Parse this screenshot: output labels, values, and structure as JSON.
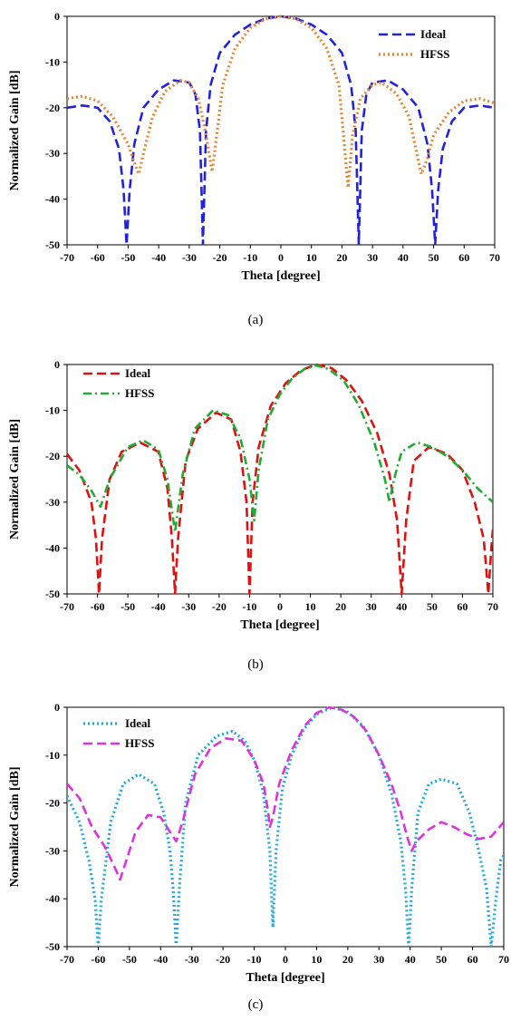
{
  "chart_data": [
    {
      "type": "line",
      "panel": "a",
      "caption": "(a)",
      "xlabel": "Theta [degree]",
      "ylabel": "Normalized Gain [dB]",
      "xlim": [
        -70,
        70
      ],
      "ylim": [
        -50,
        0
      ],
      "xticks": [
        "-70",
        "-60",
        "-50",
        "-40",
        "-30",
        "-20",
        "-10",
        "0",
        "10",
        "20",
        "30",
        "40",
        "50",
        "60",
        "70"
      ],
      "yticks": [
        "0",
        "-10",
        "-20",
        "-30",
        "-40",
        "-50"
      ],
      "legend_position": "top-right",
      "series": [
        {
          "name": "Ideal",
          "color": "#2222dd",
          "style": "dashed",
          "points": [
            [
              -70,
              -20
            ],
            [
              -65,
              -19.5
            ],
            [
              -60,
              -20
            ],
            [
              -56,
              -23
            ],
            [
              -53,
              -29
            ],
            [
              -51.5,
              -38
            ],
            [
              -50.5,
              -50
            ],
            [
              -49.5,
              -38
            ],
            [
              -48,
              -28
            ],
            [
              -45,
              -20
            ],
            [
              -40,
              -16
            ],
            [
              -35,
              -14
            ],
            [
              -30,
              -14.5
            ],
            [
              -28,
              -17
            ],
            [
              -26.5,
              -25
            ],
            [
              -25.5,
              -50
            ],
            [
              -24.5,
              -25
            ],
            [
              -23,
              -15
            ],
            [
              -20,
              -8
            ],
            [
              -15,
              -4
            ],
            [
              -10,
              -1.8
            ],
            [
              -5,
              -0.5
            ],
            [
              0,
              0
            ],
            [
              5,
              -0.5
            ],
            [
              10,
              -1.8
            ],
            [
              15,
              -4
            ],
            [
              20,
              -8
            ],
            [
              23,
              -15
            ],
            [
              24.5,
              -25
            ],
            [
              25.5,
              -50
            ],
            [
              26.5,
              -25
            ],
            [
              28,
              -17
            ],
            [
              30,
              -14.5
            ],
            [
              35,
              -14
            ],
            [
              40,
              -16
            ],
            [
              45,
              -20
            ],
            [
              48,
              -28
            ],
            [
              49.5,
              -38
            ],
            [
              50.5,
              -50
            ],
            [
              51.5,
              -38
            ],
            [
              53,
              -29
            ],
            [
              56,
              -23
            ],
            [
              60,
              -20
            ],
            [
              65,
              -19.5
            ],
            [
              70,
              -20
            ]
          ]
        },
        {
          "name": "HFSS",
          "color": "#e6862e",
          "style": "dotted",
          "points": [
            [
              -70,
              -18
            ],
            [
              -65,
              -17.5
            ],
            [
              -60,
              -18.5
            ],
            [
              -55,
              -22
            ],
            [
              -50,
              -28
            ],
            [
              -48,
              -32
            ],
            [
              -46.5,
              -34.5
            ],
            [
              -45,
              -30
            ],
            [
              -42,
              -22
            ],
            [
              -38,
              -16.5
            ],
            [
              -33,
              -14
            ],
            [
              -30,
              -14.5
            ],
            [
              -27,
              -18
            ],
            [
              -24.5,
              -26
            ],
            [
              -22.5,
              -34
            ],
            [
              -21,
              -26
            ],
            [
              -19,
              -15
            ],
            [
              -15,
              -7
            ],
            [
              -10,
              -2.5
            ],
            [
              -5,
              -0.6
            ],
            [
              0,
              0
            ],
            [
              5,
              -0.6
            ],
            [
              10,
              -2.5
            ],
            [
              15,
              -7
            ],
            [
              19,
              -15
            ],
            [
              20.5,
              -26
            ],
            [
              22,
              -37.5
            ],
            [
              23.5,
              -26
            ],
            [
              26,
              -18
            ],
            [
              30,
              -15
            ],
            [
              33,
              -14.5
            ],
            [
              38,
              -17
            ],
            [
              42,
              -22
            ],
            [
              44.5,
              -30
            ],
            [
              46,
              -34.5
            ],
            [
              48,
              -31
            ],
            [
              50,
              -26
            ],
            [
              55,
              -21
            ],
            [
              60,
              -18.5
            ],
            [
              65,
              -18
            ],
            [
              70,
              -19
            ]
          ]
        }
      ]
    },
    {
      "type": "line",
      "panel": "b",
      "caption": "(b)",
      "xlabel": "Theta [degree]",
      "ylabel": "Normalized Gain [dB]",
      "xlim": [
        -70,
        70
      ],
      "ylim": [
        -50,
        0
      ],
      "xticks": [
        "-70",
        "-60",
        "-50",
        "-40",
        "-30",
        "-20",
        "-10",
        "0",
        "10",
        "20",
        "30",
        "40",
        "50",
        "60",
        "70"
      ],
      "yticks": [
        "0",
        "-10",
        "-20",
        "-30",
        "-40",
        "-50"
      ],
      "legend_position": "top-left",
      "series": [
        {
          "name": "Ideal",
          "color": "#dd1111",
          "style": "dashed",
          "points": [
            [
              -70,
              -19.5
            ],
            [
              -66,
              -23
            ],
            [
              -62,
              -30
            ],
            [
              -60.5,
              -38
            ],
            [
              -59.5,
              -50
            ],
            [
              -58.5,
              -38
            ],
            [
              -56,
              -25
            ],
            [
              -52,
              -19
            ],
            [
              -46,
              -17
            ],
            [
              -40,
              -19
            ],
            [
              -37,
              -27
            ],
            [
              -35.5,
              -38
            ],
            [
              -34.5,
              -50
            ],
            [
              -33.5,
              -38
            ],
            [
              -31,
              -21
            ],
            [
              -27,
              -14
            ],
            [
              -21,
              -10.5
            ],
            [
              -16,
              -12
            ],
            [
              -13,
              -19
            ],
            [
              -11,
              -30
            ],
            [
              -10,
              -50
            ],
            [
              -9,
              -30
            ],
            [
              -7,
              -18
            ],
            [
              -3,
              -9
            ],
            [
              2,
              -4
            ],
            [
              7,
              -1.2
            ],
            [
              12,
              0
            ],
            [
              17,
              -0.8
            ],
            [
              22,
              -3.5
            ],
            [
              27,
              -8
            ],
            [
              32,
              -15
            ],
            [
              36,
              -24
            ],
            [
              38.5,
              -34
            ],
            [
              40,
              -50
            ],
            [
              41.5,
              -34
            ],
            [
              44,
              -21
            ],
            [
              49,
              -18
            ],
            [
              55,
              -19.5
            ],
            [
              60,
              -23
            ],
            [
              64,
              -30
            ],
            [
              67,
              -38
            ],
            [
              68.5,
              -50
            ],
            [
              69.5,
              -40
            ],
            [
              70,
              -36
            ]
          ]
        },
        {
          "name": "HFSS",
          "color": "#22aa33",
          "style": "dashdot",
          "points": [
            [
              -70,
              -22
            ],
            [
              -66,
              -24
            ],
            [
              -62,
              -27.5
            ],
            [
              -59,
              -31
            ],
            [
              -56,
              -25
            ],
            [
              -50,
              -18
            ],
            [
              -45,
              -16.5
            ],
            [
              -40,
              -18.5
            ],
            [
              -37,
              -25
            ],
            [
              -34.5,
              -36.5
            ],
            [
              -32,
              -24
            ],
            [
              -28,
              -14
            ],
            [
              -22,
              -10
            ],
            [
              -17,
              -11
            ],
            [
              -13,
              -16
            ],
            [
              -10,
              -25
            ],
            [
              -8.5,
              -34
            ],
            [
              -7,
              -23
            ],
            [
              -4,
              -12
            ],
            [
              0,
              -6.5
            ],
            [
              4,
              -3
            ],
            [
              8,
              -1
            ],
            [
              12,
              -0.2
            ],
            [
              16,
              -1
            ],
            [
              21,
              -3.5
            ],
            [
              26,
              -9
            ],
            [
              31,
              -17
            ],
            [
              34.5,
              -25
            ],
            [
              36,
              -30
            ],
            [
              37.5,
              -25
            ],
            [
              40,
              -19
            ],
            [
              45,
              -17
            ],
            [
              50,
              -18
            ],
            [
              55,
              -20
            ],
            [
              60,
              -23
            ],
            [
              65,
              -27
            ],
            [
              70,
              -30
            ]
          ]
        }
      ]
    },
    {
      "type": "line",
      "panel": "c",
      "caption": "(c)",
      "xlabel": "Theta [degree]",
      "ylabel": "Normalized Gain [dB]",
      "xlim": [
        -70,
        70
      ],
      "ylim": [
        -50,
        0
      ],
      "xticks": [
        "-70",
        "-60",
        "-50",
        "-40",
        "-30",
        "-20",
        "-10",
        "0",
        "10",
        "20",
        "30",
        "40",
        "50",
        "60",
        "70"
      ],
      "yticks": [
        "0",
        "-10",
        "-20",
        "-30",
        "-40",
        "-50"
      ],
      "legend_position": "top-left",
      "series": [
        {
          "name": "Ideal",
          "color": "#22aadd",
          "style": "dotted",
          "points": [
            [
              -70,
              -18.5
            ],
            [
              -66,
              -24
            ],
            [
              -63,
              -32
            ],
            [
              -61,
              -40
            ],
            [
              -60,
              -50
            ],
            [
              -59,
              -40
            ],
            [
              -56,
              -24
            ],
            [
              -52,
              -16
            ],
            [
              -47,
              -14
            ],
            [
              -42,
              -16
            ],
            [
              -39,
              -22
            ],
            [
              -37,
              -30
            ],
            [
              -36,
              -38
            ],
            [
              -35,
              -50
            ],
            [
              -34,
              -38
            ],
            [
              -32,
              -20
            ],
            [
              -28,
              -10
            ],
            [
              -22,
              -6
            ],
            [
              -17,
              -5
            ],
            [
              -13,
              -7
            ],
            [
              -10,
              -11
            ],
            [
              -7,
              -18
            ],
            [
              -5,
              -30
            ],
            [
              -4,
              -46
            ],
            [
              -3,
              -30
            ],
            [
              -1,
              -17
            ],
            [
              2,
              -10
            ],
            [
              6,
              -4.5
            ],
            [
              10,
              -1.5
            ],
            [
              15,
              0
            ],
            [
              20,
              -1
            ],
            [
              25,
              -4
            ],
            [
              30,
              -10
            ],
            [
              34,
              -18
            ],
            [
              37,
              -28
            ],
            [
              38.5,
              -38
            ],
            [
              39.5,
              -50
            ],
            [
              40.5,
              -38
            ],
            [
              42.5,
              -22
            ],
            [
              46,
              -16
            ],
            [
              50,
              -15
            ],
            [
              55,
              -16
            ],
            [
              59,
              -22
            ],
            [
              62,
              -30
            ],
            [
              64.5,
              -38
            ],
            [
              66,
              -50
            ],
            [
              67.5,
              -40
            ],
            [
              69,
              -32
            ],
            [
              70,
              -31
            ]
          ]
        },
        {
          "name": "HFSS",
          "color": "#dd33dd",
          "style": "dashed",
          "points": [
            [
              -70,
              -16
            ],
            [
              -66,
              -19
            ],
            [
              -62,
              -25
            ],
            [
              -58,
              -29
            ],
            [
              -55,
              -33
            ],
            [
              -53,
              -36
            ],
            [
              -51,
              -32
            ],
            [
              -48,
              -26
            ],
            [
              -44,
              -22.5
            ],
            [
              -40,
              -23
            ],
            [
              -37,
              -26
            ],
            [
              -35,
              -28
            ],
            [
              -33,
              -24
            ],
            [
              -29,
              -14
            ],
            [
              -24,
              -8.5
            ],
            [
              -19,
              -6.5
            ],
            [
              -14,
              -7
            ],
            [
              -10,
              -11
            ],
            [
              -7,
              -16
            ],
            [
              -5.5,
              -22
            ],
            [
              -5,
              -25
            ],
            [
              -4,
              -23
            ],
            [
              -2,
              -16
            ],
            [
              2,
              -9
            ],
            [
              6,
              -4
            ],
            [
              10,
              -1.2
            ],
            [
              14,
              0
            ],
            [
              18,
              -0.5
            ],
            [
              22,
              -2
            ],
            [
              26,
              -5
            ],
            [
              30,
              -10
            ],
            [
              34,
              -16
            ],
            [
              37,
              -22
            ],
            [
              39,
              -27
            ],
            [
              40.5,
              -30
            ],
            [
              42,
              -28
            ],
            [
              46,
              -25.5
            ],
            [
              50,
              -24
            ],
            [
              54,
              -25
            ],
            [
              58,
              -26.5
            ],
            [
              62,
              -27.5
            ],
            [
              66,
              -27
            ],
            [
              70,
              -24
            ]
          ]
        }
      ]
    }
  ]
}
